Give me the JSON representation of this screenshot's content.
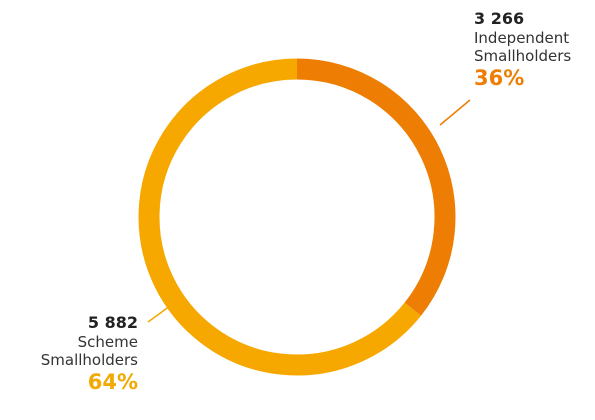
{
  "chart_data": {
    "type": "pie",
    "donut": true,
    "title": "",
    "series": [
      {
        "name": "Independent Smallholders",
        "value": 3266,
        "value_label": "3 266",
        "name_lines": [
          "Independent",
          "Smallholders"
        ],
        "percent": 36,
        "percent_label": "36%",
        "color": "#ED7E03",
        "label_color": "#ED7E03"
      },
      {
        "name": "Scheme Smallholders",
        "value": 5882,
        "value_label": "5 882",
        "name_lines": [
          "Scheme",
          "Smallholders"
        ],
        "percent": 64,
        "percent_label": "64%",
        "color": "#F6A800",
        "label_color": "#F2A900"
      }
    ]
  }
}
